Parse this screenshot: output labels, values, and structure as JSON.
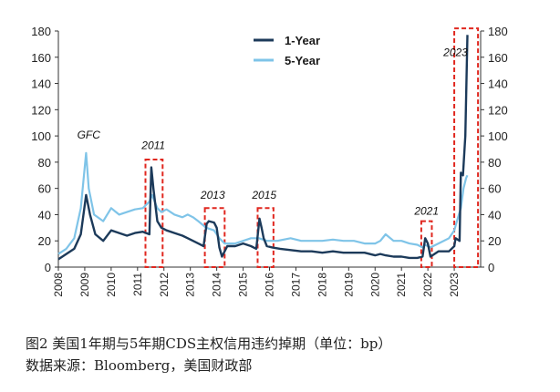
{
  "caption": {
    "figure": "图2   美国1年期与5年期CDS主权信用违约掉期（单位：bp）",
    "source": "数据来源：Bloomberg，美国财政部"
  },
  "chart_data": {
    "type": "line",
    "x_unit": "year",
    "xlim": [
      2008,
      2024
    ],
    "ylim": [
      0,
      180
    ],
    "y_ticks": [
      0,
      20,
      40,
      60,
      80,
      100,
      120,
      140,
      160,
      180
    ],
    "x_ticks": [
      "2008",
      "2009",
      "2010",
      "2011",
      "2012",
      "2013",
      "2014",
      "2015",
      "2016",
      "2017",
      "2018",
      "2019",
      "2020",
      "2021",
      "2022",
      "2023"
    ],
    "dual_y_axis": true,
    "legend_position": "top-right",
    "series": [
      {
        "name": "1-Year",
        "color": "#1c3a5a",
        "x": [
          2008.0,
          2008.3,
          2008.6,
          2008.85,
          2009.05,
          2009.2,
          2009.4,
          2009.7,
          2010.0,
          2010.3,
          2010.6,
          2010.9,
          2011.2,
          2011.45,
          2011.52,
          2011.6,
          2011.75,
          2011.9,
          2012.1,
          2012.4,
          2012.7,
          2012.9,
          2013.1,
          2013.3,
          2013.5,
          2013.62,
          2013.7,
          2013.9,
          2014.0,
          2014.1,
          2014.2,
          2014.4,
          2014.7,
          2015.0,
          2015.3,
          2015.5,
          2015.62,
          2015.7,
          2015.78,
          2015.9,
          2016.1,
          2016.4,
          2016.8,
          2017.2,
          2017.6,
          2018.0,
          2018.4,
          2018.8,
          2019.2,
          2019.6,
          2020.0,
          2020.2,
          2020.4,
          2020.7,
          2021.0,
          2021.3,
          2021.6,
          2021.8,
          2021.9,
          2022.0,
          2022.1,
          2022.4,
          2022.8,
          2023.0,
          2023.05,
          2023.2,
          2023.25,
          2023.33,
          2023.42,
          2023.5
        ],
        "y": [
          6,
          10,
          14,
          25,
          55,
          40,
          25,
          20,
          28,
          26,
          24,
          26,
          27,
          25,
          76,
          60,
          35,
          30,
          28,
          26,
          24,
          22,
          20,
          18,
          16,
          33,
          35,
          34,
          30,
          15,
          8,
          16,
          16,
          18,
          16,
          14,
          37,
          30,
          22,
          16,
          15,
          14,
          13,
          12,
          12,
          11,
          12,
          11,
          11,
          11,
          9,
          10,
          9,
          8,
          8,
          7,
          7,
          8,
          22,
          18,
          8,
          12,
          12,
          16,
          22,
          20,
          72,
          70,
          100,
          177
        ]
      },
      {
        "name": "5-Year",
        "color": "#7fc4e8",
        "x": [
          2008.0,
          2008.3,
          2008.6,
          2008.85,
          2009.05,
          2009.15,
          2009.35,
          2009.7,
          2010.0,
          2010.3,
          2010.6,
          2010.9,
          2011.2,
          2011.45,
          2011.55,
          2011.75,
          2011.9,
          2012.1,
          2012.4,
          2012.7,
          2012.9,
          2013.1,
          2013.3,
          2013.6,
          2013.9,
          2014.1,
          2014.3,
          2014.7,
          2015.0,
          2015.3,
          2015.6,
          2015.9,
          2016.3,
          2016.8,
          2017.2,
          2017.6,
          2018.0,
          2018.4,
          2018.8,
          2019.2,
          2019.6,
          2020.0,
          2020.2,
          2020.4,
          2020.7,
          2021.0,
          2021.3,
          2021.6,
          2021.8,
          2021.9,
          2022.0,
          2022.1,
          2022.4,
          2022.8,
          2023.0,
          2023.1,
          2023.25,
          2023.35,
          2023.45,
          2023.5
        ],
        "y": [
          10,
          14,
          22,
          45,
          87,
          60,
          40,
          35,
          45,
          40,
          42,
          44,
          45,
          50,
          55,
          45,
          42,
          44,
          40,
          38,
          40,
          38,
          35,
          30,
          28,
          22,
          18,
          18,
          20,
          22,
          22,
          20,
          20,
          22,
          20,
          20,
          20,
          21,
          20,
          20,
          18,
          18,
          20,
          25,
          20,
          20,
          18,
          17,
          15,
          17,
          16,
          15,
          18,
          22,
          28,
          35,
          45,
          60,
          68,
          70
        ]
      }
    ],
    "annotations": [
      {
        "text": "GFC",
        "x": 2009.15,
        "y": 98
      },
      {
        "text": "2011",
        "x": 2011.6,
        "y": 90,
        "box_x": [
          2011.3,
          2011.95
        ],
        "box_y": [
          0,
          82
        ]
      },
      {
        "text": "2013",
        "x": 2013.85,
        "y": 52,
        "box_x": [
          2013.55,
          2014.3
        ],
        "box_y": [
          0,
          45
        ]
      },
      {
        "text": "2015",
        "x": 2015.8,
        "y": 52,
        "box_x": [
          2015.55,
          2016.15
        ],
        "box_y": [
          0,
          45
        ]
      },
      {
        "text": "2021",
        "x": 2021.95,
        "y": 40,
        "box_x": [
          2021.75,
          2022.15
        ],
        "box_y": [
          0,
          35
        ]
      },
      {
        "text": "2023",
        "x": 2023.05,
        "y": 161,
        "box_x": [
          2023.0,
          2023.9
        ],
        "box_y": [
          0,
          182
        ]
      }
    ]
  }
}
